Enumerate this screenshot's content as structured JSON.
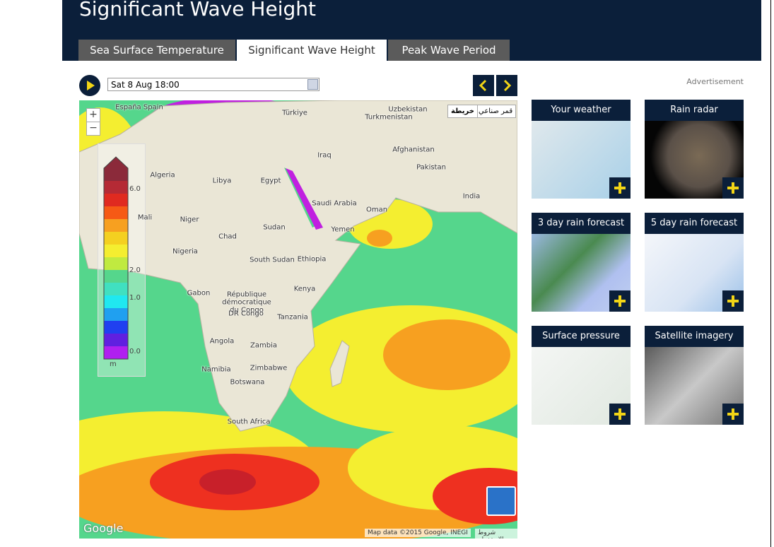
{
  "header": {
    "title": "Significant Wave Height",
    "tabs": [
      "Sea Surface Temperature",
      "Significant Wave Height",
      "Peak Wave Period"
    ]
  },
  "controls": {
    "date": "Sat 8 Aug 18:00"
  },
  "advertisement": "Advertisement",
  "map": {
    "zoom_in": "+",
    "zoom_out": "−",
    "map_types": [
      "قمر صناعي",
      "خريطة"
    ],
    "legend": {
      "ticks": [
        "6.0",
        "2.0",
        "1.0",
        "0.0"
      ],
      "unit": "m"
    },
    "labels": [
      "España Spain",
      "Türkiye",
      "Uzbekistan",
      "Turkmenistan",
      "Algeria",
      "Libya",
      "Egypt",
      "Iraq",
      "Afghanistan",
      "Pakistan",
      "Saudi Arabia",
      "India",
      "Oman",
      "Mali",
      "Niger",
      "Chad",
      "Sudan",
      "Yemen",
      "Nigeria",
      "South Sudan",
      "Ethiopia",
      "Gabon",
      "République démocratique du Congo",
      "DR Congo",
      "Kenya",
      "Tanzania",
      "Angola",
      "Zambia",
      "Namibia",
      "Zimbabwe",
      "Botswana",
      "South Africa"
    ],
    "attribution": "Map data ©2015 Google, INEGI",
    "terms": "شروط الاستخدام",
    "logo": "Google"
  },
  "tiles": [
    "Your weather",
    "Rain radar",
    "3 day rain forecast",
    "5 day rain forecast",
    "Surface pressure",
    "Satellite imagery"
  ]
}
